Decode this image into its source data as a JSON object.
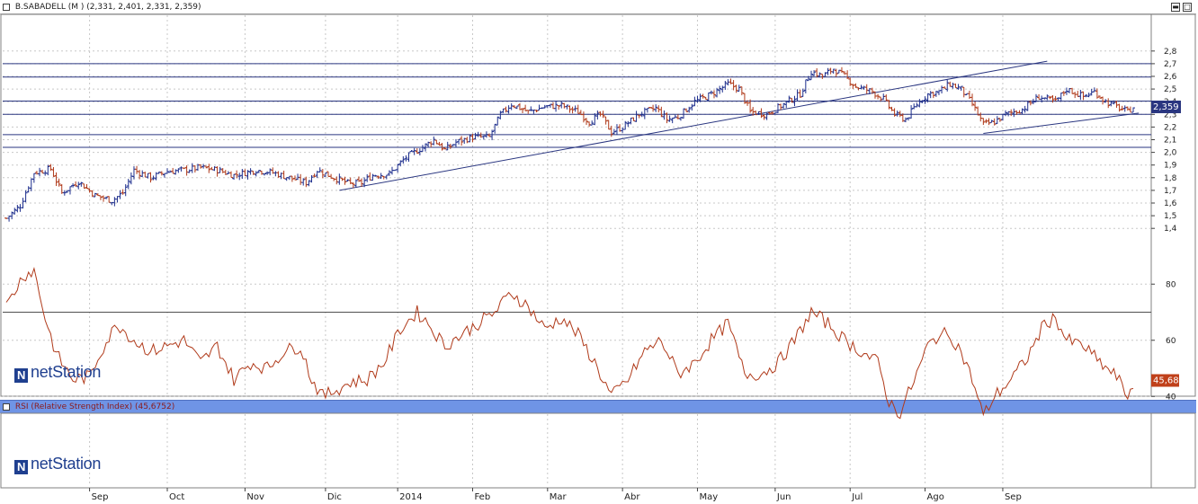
{
  "chart_data": [
    {
      "type": "ohlc",
      "title": "B.SABADELL (M ) (2,331, 2,401, 2,331, 2,359)",
      "ylim": [
        1.4,
        2.8
      ],
      "yticks": [
        "1,4",
        "1,5",
        "1,6",
        "1,7",
        "1,8",
        "1,9",
        "2,0",
        "2,1",
        "2,2",
        "2,3",
        "2,4",
        "2,5",
        "2,6",
        "2,7",
        "2,8"
      ],
      "last_value": "2,359",
      "up_color": "#1c2d8c",
      "down_color": "#b03a1a",
      "anchors": [
        [
          0,
          1.48
        ],
        [
          5,
          1.58
        ],
        [
          10,
          1.84
        ],
        [
          16,
          1.87
        ],
        [
          20,
          1.68
        ],
        [
          26,
          1.77
        ],
        [
          32,
          1.66
        ],
        [
          38,
          1.62
        ],
        [
          42,
          1.68
        ],
        [
          46,
          1.86
        ],
        [
          52,
          1.8
        ],
        [
          58,
          1.85
        ],
        [
          64,
          1.86
        ],
        [
          70,
          1.88
        ],
        [
          76,
          1.86
        ],
        [
          82,
          1.82
        ],
        [
          90,
          1.86
        ],
        [
          96,
          1.84
        ],
        [
          102,
          1.8
        ],
        [
          108,
          1.76
        ],
        [
          112,
          1.86
        ],
        [
          118,
          1.8
        ],
        [
          124,
          1.75
        ],
        [
          128,
          1.76
        ],
        [
          132,
          1.82
        ],
        [
          138,
          1.83
        ],
        [
          144,
          1.96
        ],
        [
          150,
          2.04
        ],
        [
          154,
          2.1
        ],
        [
          158,
          2.02
        ],
        [
          162,
          2.08
        ],
        [
          168,
          2.12
        ],
        [
          174,
          2.12
        ],
        [
          178,
          2.3
        ],
        [
          182,
          2.38
        ],
        [
          188,
          2.32
        ],
        [
          194,
          2.36
        ],
        [
          200,
          2.37
        ],
        [
          206,
          2.32
        ],
        [
          210,
          2.24
        ],
        [
          214,
          2.3
        ],
        [
          218,
          2.16
        ],
        [
          222,
          2.2
        ],
        [
          228,
          2.3
        ],
        [
          234,
          2.35
        ],
        [
          238,
          2.26
        ],
        [
          242,
          2.28
        ],
        [
          248,
          2.4
        ],
        [
          254,
          2.46
        ],
        [
          260,
          2.54
        ],
        [
          264,
          2.5
        ],
        [
          268,
          2.32
        ],
        [
          274,
          2.3
        ],
        [
          280,
          2.38
        ],
        [
          286,
          2.46
        ],
        [
          290,
          2.64
        ],
        [
          294,
          2.6
        ],
        [
          298,
          2.66
        ],
        [
          302,
          2.6
        ],
        [
          306,
          2.52
        ],
        [
          312,
          2.48
        ],
        [
          316,
          2.42
        ],
        [
          320,
          2.3
        ],
        [
          324,
          2.26
        ],
        [
          328,
          2.38
        ],
        [
          332,
          2.46
        ],
        [
          336,
          2.48
        ],
        [
          340,
          2.54
        ],
        [
          344,
          2.5
        ],
        [
          348,
          2.38
        ],
        [
          352,
          2.22
        ],
        [
          356,
          2.24
        ],
        [
          360,
          2.3
        ],
        [
          366,
          2.34
        ],
        [
          372,
          2.44
        ],
        [
          378,
          2.4
        ],
        [
          382,
          2.5
        ],
        [
          388,
          2.44
        ],
        [
          392,
          2.48
        ],
        [
          396,
          2.4
        ],
        [
          400,
          2.36
        ],
        [
          404,
          2.32
        ],
        [
          406,
          2.36
        ]
      ],
      "annotations": [
        {
          "kind": "hline",
          "y": 2.7
        },
        {
          "kind": "hline",
          "y": 2.595
        },
        {
          "kind": "hline",
          "y": 2.405
        },
        {
          "kind": "hline",
          "y": 2.3
        },
        {
          "kind": "hline",
          "y": 2.14
        },
        {
          "kind": "hline",
          "y": 2.04
        },
        {
          "kind": "trend",
          "x1": 120,
          "y1": 1.7,
          "x2": 375,
          "y2": 2.72
        },
        {
          "kind": "trend",
          "x1": 352,
          "y1": 2.15,
          "x2": 408,
          "y2": 2.31
        }
      ]
    },
    {
      "type": "line",
      "title": "RSI (Relative Strength Index) (45,6752)",
      "ylim": [
        30,
        90
      ],
      "yticks": [
        "40",
        "60",
        "80"
      ],
      "hlines": [
        70
      ],
      "last_value": "45,68",
      "line_color": "#b03a1a",
      "anchors": [
        [
          0,
          72
        ],
        [
          6,
          83
        ],
        [
          10,
          85
        ],
        [
          14,
          68
        ],
        [
          18,
          55
        ],
        [
          24,
          46
        ],
        [
          30,
          47
        ],
        [
          34,
          56
        ],
        [
          40,
          66
        ],
        [
          46,
          60
        ],
        [
          52,
          56
        ],
        [
          58,
          58
        ],
        [
          64,
          60
        ],
        [
          70,
          52
        ],
        [
          76,
          58
        ],
        [
          82,
          46
        ],
        [
          88,
          52
        ],
        [
          94,
          50
        ],
        [
          100,
          56
        ],
        [
          106,
          58
        ],
        [
          110,
          46
        ],
        [
          114,
          40
        ],
        [
          118,
          42
        ],
        [
          124,
          45
        ],
        [
          130,
          46
        ],
        [
          136,
          52
        ],
        [
          142,
          64
        ],
        [
          148,
          70
        ],
        [
          152,
          66
        ],
        [
          158,
          58
        ],
        [
          164,
          62
        ],
        [
          170,
          66
        ],
        [
          176,
          70
        ],
        [
          182,
          77
        ],
        [
          188,
          72
        ],
        [
          194,
          64
        ],
        [
          200,
          68
        ],
        [
          206,
          62
        ],
        [
          212,
          52
        ],
        [
          218,
          40
        ],
        [
          224,
          46
        ],
        [
          230,
          56
        ],
        [
          236,
          60
        ],
        [
          242,
          48
        ],
        [
          248,
          52
        ],
        [
          254,
          60
        ],
        [
          260,
          66
        ],
        [
          266,
          48
        ],
        [
          272,
          48
        ],
        [
          278,
          52
        ],
        [
          284,
          60
        ],
        [
          290,
          70
        ],
        [
          296,
          66
        ],
        [
          302,
          60
        ],
        [
          308,
          56
        ],
        [
          314,
          52
        ],
        [
          318,
          38
        ],
        [
          322,
          34
        ],
        [
          328,
          48
        ],
        [
          332,
          58
        ],
        [
          336,
          62
        ],
        [
          340,
          62
        ],
        [
          344,
          56
        ],
        [
          348,
          46
        ],
        [
          352,
          33
        ],
        [
          356,
          40
        ],
        [
          362,
          46
        ],
        [
          368,
          54
        ],
        [
          374,
          66
        ],
        [
          378,
          68
        ],
        [
          382,
          60
        ],
        [
          388,
          58
        ],
        [
          394,
          52
        ],
        [
          400,
          47
        ],
        [
          404,
          40
        ],
        [
          406,
          45
        ]
      ]
    }
  ],
  "xaxis": {
    "months": [
      "Sep",
      "Oct",
      "Nov",
      "Dic",
      "2014",
      "Feb",
      "Mar",
      "Abr",
      "May",
      "Jun",
      "Jul",
      "Ago",
      "Sep"
    ],
    "month_bar_index": [
      30,
      58,
      86,
      115,
      141,
      168,
      195,
      222,
      249,
      277,
      304,
      331,
      359
    ]
  },
  "logo_text": "netStation",
  "logo_mark": "N",
  "window_buttons": [
    "▬",
    "□"
  ]
}
